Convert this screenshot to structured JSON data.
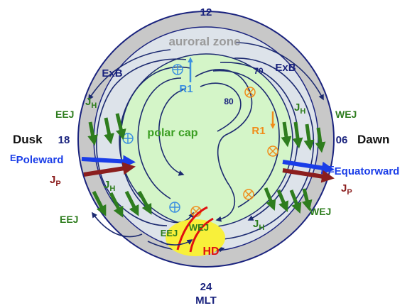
{
  "labels": {
    "mlt_top": "12",
    "mlt_bottom": "24",
    "mlt_axis": "MLT",
    "mlt_left": "18",
    "mlt_right": "06",
    "dusk": "Dusk",
    "dawn": "Dawn",
    "auroral_zone": "auroral zone",
    "polar_cap": "polar cap",
    "exb_left": "ExB",
    "exb_right": "ExB",
    "lat_70": "70",
    "lat_80": "80",
    "r1_left": "R1",
    "r1_right": "R1",
    "jh_upper_left": "J",
    "jh_upper_left_sub": "H",
    "jh_upper_right": "J",
    "jh_upper_right_sub": "H",
    "jh_lower_left": "J",
    "jh_lower_left_sub": "H",
    "jh_lower_right": "J",
    "jh_lower_right_sub": "H",
    "eej_upper": "EEJ",
    "eej_lower": "EEJ",
    "eej_center": "EEJ",
    "wej_upper": "WEJ",
    "wej_lower": "WEJ",
    "wej_center": "WEJ",
    "hd": "HD",
    "e_poleward": "E",
    "e_poleward_sub": "Poleward",
    "e_equatorward": "E",
    "e_equatorward_sub": "Equatorward",
    "jp_left": "J",
    "jp_left_sub": "P",
    "jp_right": "J",
    "jp_right_sub": "P"
  },
  "colors": {
    "outer_band": "#c8c8c8",
    "auroral_band": "#dde3ea",
    "polar_cap_fill": "#d4f5c8",
    "navy": "#1a237e",
    "flow_line": "#1c2a70",
    "green_current": "#2e7d1e",
    "green_label": "#3a9e22",
    "blue_r1": "#3b8fe0",
    "orange_r1": "#f08c1a",
    "e_field": "#1a3de8",
    "jp_arrow": "#8b1e1e",
    "hd_yellow": "#f8f03a",
    "hd_red": "#e01010",
    "grey_text": "#9a9a9a"
  },
  "icons": {
    "current_out_left": "circle-plus-icon",
    "current_in_right": "circle-cross-icon"
  }
}
